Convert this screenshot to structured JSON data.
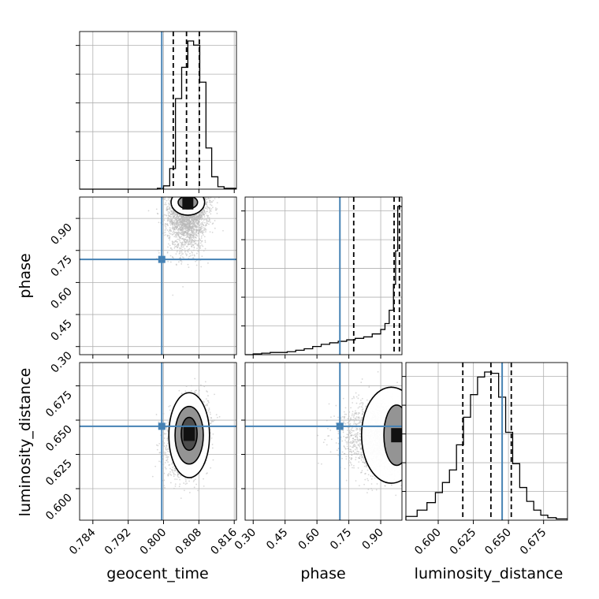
{
  "chart_data": {
    "type": "corner",
    "parameters": [
      "geocent_time",
      "phase",
      "luminosity_distance"
    ],
    "ranges": {
      "geocent_time": [
        0.781,
        0.8165
      ],
      "phase": [
        0.262,
        1.0
      ],
      "luminosity_distance": [
        0.577,
        0.692
      ]
    },
    "ticks": {
      "geocent_time": [
        0.784,
        0.792,
        0.8,
        0.808,
        0.816
      ],
      "phase_x": [
        0.3,
        0.45,
        0.6,
        0.75,
        0.9
      ],
      "phase_y": [
        0.3,
        0.45,
        0.6,
        0.75,
        0.9
      ],
      "luminosity_distance_x": [
        0.6,
        0.625,
        0.65,
        0.675
      ],
      "luminosity_distance_y": [
        0.6,
        0.625,
        0.65,
        0.675
      ]
    },
    "tick_labels": {
      "geocent_time": [
        "0.784",
        "0.792",
        "0.800",
        "0.808",
        "0.816"
      ],
      "phase_x": [
        "0.30",
        "0.45",
        "0.60",
        "0.75",
        "0.90"
      ],
      "phase_y": [
        "0.30",
        "0.45",
        "0.60",
        "0.75",
        "0.90"
      ],
      "luminosity_distance_x": [
        "0.600",
        "0.625",
        "0.650",
        "0.675"
      ],
      "luminosity_distance_y": [
        "0.600",
        "0.625",
        "0.650",
        "0.675"
      ]
    },
    "truths": {
      "geocent_time": 0.7996,
      "phase": 0.708,
      "luminosity_distance": 0.6455
    },
    "quantiles": {
      "geocent_time": [
        0.8022,
        0.8052,
        0.8081
      ],
      "phase": [
        0.773,
        0.963,
        0.988
      ],
      "luminosity_distance": [
        0.6175,
        0.6375,
        0.652
      ]
    },
    "histograms": {
      "geocent_time": {
        "edges": [
          0.781,
          0.7986,
          0.8,
          0.8014,
          0.8027,
          0.8041,
          0.8055,
          0.8068,
          0.8082,
          0.8096,
          0.8109,
          0.8123,
          0.8137,
          0.8165
        ],
        "counts": [
          0.0,
          1,
          4,
          25,
          110,
          148,
          180,
          175,
          130,
          50,
          15,
          3,
          1
        ]
      },
      "phase": {
        "edges": [
          0.262,
          0.3,
          0.34,
          0.38,
          0.42,
          0.46,
          0.5,
          0.54,
          0.58,
          0.62,
          0.66,
          0.7,
          0.74,
          0.78,
          0.82,
          0.86,
          0.9,
          0.92,
          0.94,
          0.96,
          0.97,
          0.98,
          1.0
        ],
        "counts": [
          0,
          1,
          2,
          3,
          3,
          4,
          6,
          8,
          11,
          14,
          16,
          18,
          20,
          22,
          24,
          28,
          34,
          42,
          60,
          95,
          140,
          200
        ]
      },
      "luminosity_distance": {
        "edges": [
          0.577,
          0.585,
          0.592,
          0.598,
          0.603,
          0.608,
          0.613,
          0.618,
          0.623,
          0.628,
          0.633,
          0.638,
          0.643,
          0.648,
          0.653,
          0.658,
          0.663,
          0.668,
          0.673,
          0.678,
          0.684,
          0.692
        ],
        "counts": [
          3,
          8,
          14,
          22,
          30,
          40,
          60,
          82,
          100,
          114,
          118,
          117,
          98,
          70,
          45,
          26,
          15,
          8,
          4,
          2,
          1
        ]
      }
    },
    "scatter_style": {
      "hist_color": "#000000",
      "truth_color": "#4682b4",
      "point_color": "#b8b8b8",
      "contour_color": "#000000",
      "density_colors": [
        "#000000",
        "#454545",
        "#888888",
        "#c6c6c6",
        "#f2f2f2"
      ]
    },
    "grid": true
  }
}
